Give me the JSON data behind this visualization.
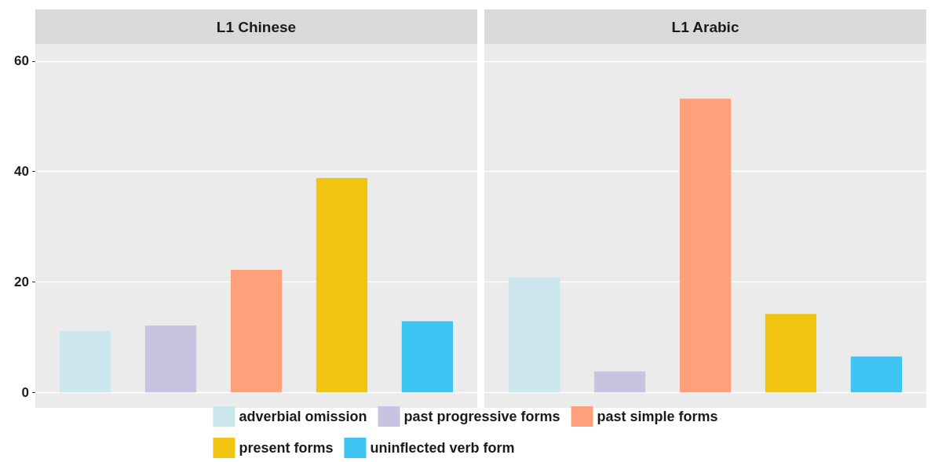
{
  "chart_data": {
    "type": "bar",
    "categories": [
      "L1 Chinese",
      "L1 Arabic"
    ],
    "ylim": [
      -2.8,
      63.1
    ],
    "yticks": [
      0,
      20,
      40,
      60
    ],
    "grid": "y",
    "legend": "bottom",
    "series": [
      {
        "name": "adverbial omission",
        "color": "#cce6ee",
        "values": [
          11.1,
          20.8
        ]
      },
      {
        "name": "past progressive forms",
        "color": "#c8c3e0",
        "values": [
          12.1,
          3.8
        ]
      },
      {
        "name": "past simple forms",
        "color": "#ffa07a",
        "values": [
          22.2,
          53.2
        ]
      },
      {
        "name": "present forms",
        "color": "#f0c40f",
        "values": [
          38.8,
          14.2
        ]
      },
      {
        "name": "uninflected verb form",
        "color": "#3cc5f2",
        "values": [
          12.9,
          6.5
        ]
      }
    ]
  }
}
